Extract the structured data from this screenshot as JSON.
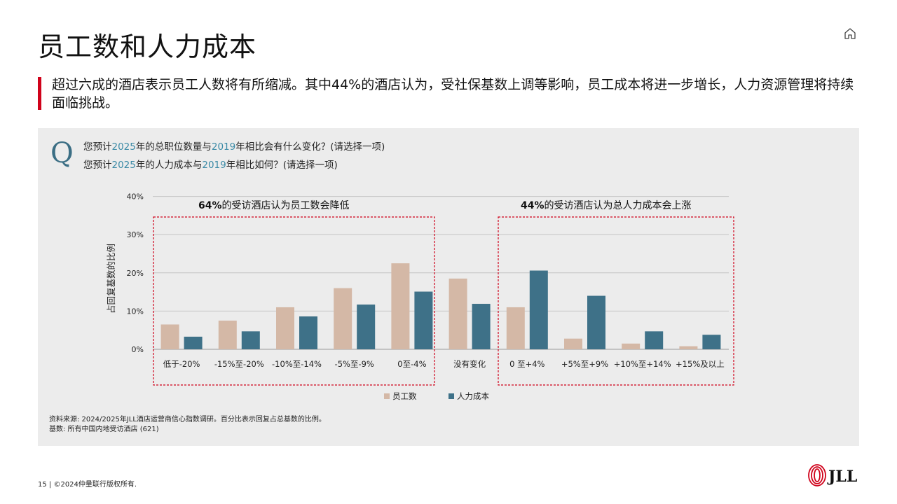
{
  "header": {
    "title": "员工数和人力成本",
    "callout": "超过六成的酒店表示员工人数将有所缩减。其中44%的酒店认为，受社保基数上调等影响，员工成本将进一步增长，人力资源管理将持续面临挑战。"
  },
  "question": {
    "mark": "Q",
    "line1": {
      "pre": "您预计",
      "year1": "2025",
      "mid": "年的总职位数量与",
      "year2": "2019",
      "post": "年相比会有什么变化？(请选择一项)"
    },
    "line2": {
      "pre": "您预计",
      "year1": "2025",
      "mid": "年的人力成本与",
      "year2": "2019",
      "post": "年相比如何？(请选择一项)"
    }
  },
  "chart_data": {
    "type": "bar",
    "ylabel": "占回复基数的比例",
    "ylim": [
      0,
      40
    ],
    "yticks": [
      0,
      10,
      20,
      30,
      40
    ],
    "ytick_labels": [
      "0%",
      "10%",
      "20%",
      "30%",
      "40%"
    ],
    "grid": true,
    "legend_position": "bottom",
    "categories": [
      "低于-20%",
      "-15%至-20%",
      "-10%至-14%",
      "-5%至-9%",
      "0至-4%",
      "没有变化",
      "0 至+4%",
      "+5%至+9%",
      "+10%至+14%",
      "+15%及以上"
    ],
    "series": [
      {
        "name": "员工数",
        "color": "#d4b8a6",
        "values": [
          6.5,
          7.5,
          11,
          16,
          22.5,
          18.5,
          11,
          2.8,
          1.5,
          0.8
        ]
      },
      {
        "name": "人力成本",
        "color": "#3e7188",
        "values": [
          3.3,
          4.7,
          8.6,
          11.7,
          15.1,
          11.9,
          20.6,
          14,
          4.7,
          3.8
        ]
      }
    ],
    "annotations": [
      {
        "bold": "64%",
        "text": "的受访酒店认为员工数会降低"
      },
      {
        "bold": "44%",
        "text": "的受访酒店认为总人力成本会上涨"
      }
    ]
  },
  "source": {
    "line1": "资料来源: 2024/2025年JLL酒店运营商信心指数调研。百分比表示回复占总基数的比例。",
    "line2": "基数: 所有中国内地受访酒店 (621)"
  },
  "footer": {
    "text": "15 | ©2024仲量联行版权所有."
  },
  "brand": {
    "logo_text": "JLL",
    "accent_color": "#d0021b"
  }
}
